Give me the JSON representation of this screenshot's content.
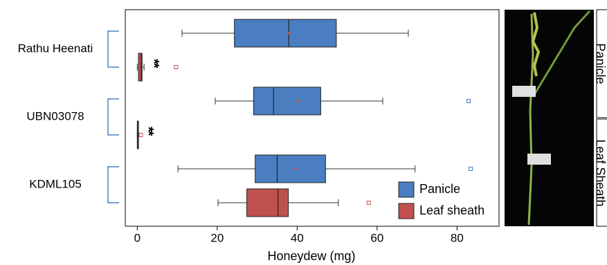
{
  "chart_data": {
    "type": "boxplot",
    "orientation": "horizontal",
    "categories": [
      "Rathu Heenati",
      "UBN03078",
      "KDML105"
    ],
    "xlabel": "Honeydew (mg)",
    "xlim": [
      -3,
      90.5
    ],
    "xticks": [
      0,
      20,
      40,
      60,
      80
    ],
    "legend": "lower right",
    "series": [
      {
        "name": "Panicle",
        "color": "#4a7ec0",
        "boxes": [
          {
            "min": 11.2,
            "q1": 24.3,
            "median": 37.9,
            "q3": 49.8,
            "max": 67.8,
            "mean": 37.9,
            "outliers": []
          },
          {
            "min": 19.5,
            "q1": 29.1,
            "median": 34.1,
            "q3": 45.9,
            "max": 61.4,
            "mean": 40.2,
            "outliers": [
              82.9
            ]
          },
          {
            "min": 10.2,
            "q1": 29.5,
            "median": 35,
            "q3": 47.1,
            "max": 69.5,
            "mean": 39.7,
            "outliers": [
              83.4
            ]
          }
        ]
      },
      {
        "name": "Leaf sheath",
        "color": "#c0504d",
        "boxes": [
          {
            "min": 0,
            "q1": 0.3,
            "median": 1,
            "q3": 1.2,
            "max": 1.7,
            "outliers": [
              9.7
            ]
          },
          {
            "min": 0,
            "q1": 0,
            "median": 0.2,
            "q3": 0.3,
            "max": 0.3,
            "outliers": [
              0.9
            ]
          },
          {
            "min": 20.2,
            "q1": 27.4,
            "median": 35.2,
            "q3": 37.8,
            "max": 50.3,
            "outliers": [
              57.9
            ]
          }
        ]
      }
    ],
    "annotations": [
      {
        "text": "**",
        "series": 1,
        "category": 0
      },
      {
        "text": "**",
        "series": 1,
        "category": 1
      }
    ],
    "photo_labels": [
      "Panicle",
      "Leaf Sheath"
    ]
  }
}
